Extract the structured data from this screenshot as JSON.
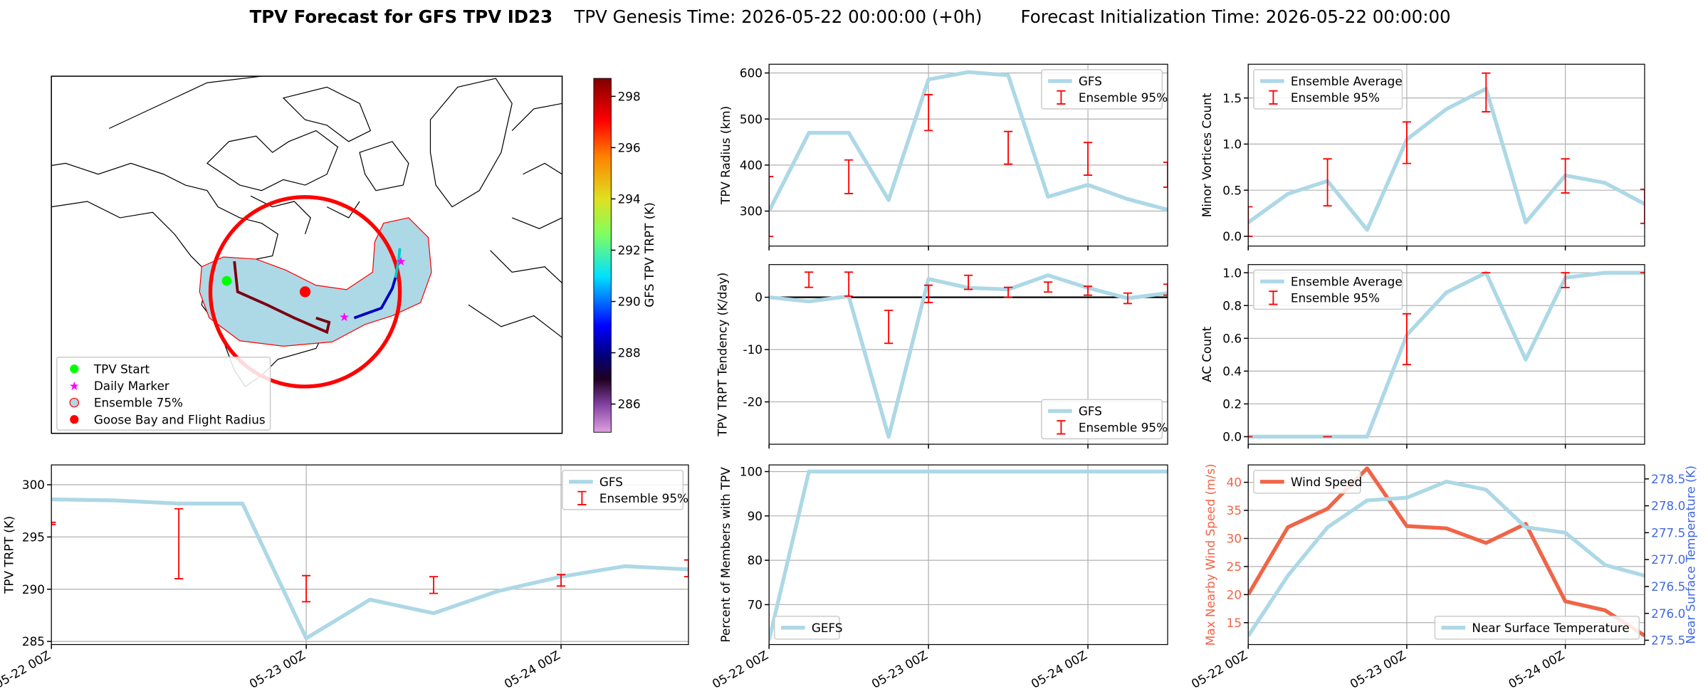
{
  "title": "TPV Forecast for GFS TPV ID23",
  "genesis": "TPV Genesis Time: 2026-05-22 00:00:00 (+0h)",
  "init": "Forecast Initialization Time: 2026-05-22 00:00:00",
  "chart_data": [
    {
      "type": "map",
      "markers": [
        {
          "name": "TPV Start",
          "color": "#00ff00"
        },
        {
          "name": "Daily Marker",
          "color": "#ff00ff"
        },
        {
          "name": "Ensemble 75%",
          "color": "#add8e6"
        },
        {
          "name": "Goose Bay and Flight Radius",
          "color": "#ff0000"
        }
      ],
      "colorbar": {
        "label": "GFS TPV TRPT (K)",
        "clim": [
          284.9,
          298.7
        ],
        "ticks": [
          286,
          288,
          290,
          292,
          294,
          296,
          298
        ]
      }
    },
    {
      "type": "line",
      "ylabel": "TPV Radius (km)",
      "x": [
        "05-22 00Z",
        "05-22 06Z",
        "05-22 12Z",
        "05-22 18Z",
        "05-23 00Z",
        "05-23 06Z",
        "05-23 12Z",
        "05-23 18Z",
        "05-24 00Z",
        "05-24 06Z",
        "05-24 12Z"
      ],
      "xticks": [
        "05-22 00Z",
        "05-23 00Z",
        "05-24 00Z"
      ],
      "xticklabels": false,
      "ylim": [
        224,
        619
      ],
      "yticks": [
        300,
        400,
        500,
        600
      ],
      "grid": true,
      "legend": "upper right",
      "series": [
        {
          "name": "GFS",
          "color": "#add8e6",
          "values": [
            300,
            470,
            470,
            324,
            586,
            602,
            595,
            331,
            357,
            326,
            303
          ]
        },
        {
          "name": "Ensemble 95%",
          "type": "errorbar",
          "color": "#ff0000",
          "low": [
            245,
            null,
            338,
            null,
            475,
            null,
            402,
            null,
            378,
            null,
            352
          ],
          "high": [
            375,
            null,
            411,
            null,
            553,
            null,
            473,
            null,
            449,
            null,
            406
          ]
        }
      ]
    },
    {
      "type": "line",
      "ylabel": "Minor Vortices Count",
      "x": [
        "05-22 00Z",
        "05-22 06Z",
        "05-22 12Z",
        "05-22 18Z",
        "05-23 00Z",
        "05-23 06Z",
        "05-23 12Z",
        "05-23 18Z",
        "05-24 00Z",
        "05-24 06Z",
        "05-24 12Z"
      ],
      "xticks": [
        "05-22 00Z",
        "05-23 00Z",
        "05-24 00Z"
      ],
      "xticklabels": false,
      "ylim": [
        -0.106,
        1.866
      ],
      "yticks": [
        {
          "value": 0,
          "label": "0.0"
        },
        0.5,
        {
          "value": 1,
          "label": "1.0"
        },
        1.5
      ],
      "grid": true,
      "legend": "upper left",
      "series": [
        {
          "name": "Ensemble Average",
          "color": "#add8e6",
          "values": [
            0.15,
            0.46,
            0.6,
            0.07,
            1.05,
            1.38,
            1.6,
            0.15,
            0.66,
            0.58,
            0.35
          ]
        },
        {
          "name": "Ensemble 95%",
          "type": "errorbar",
          "color": "#ff0000",
          "low": [
            0,
            null,
            0.33,
            null,
            0.79,
            null,
            1.35,
            null,
            0.47,
            null,
            0.14
          ],
          "high": [
            0.32,
            null,
            0.84,
            null,
            1.24,
            null,
            1.77,
            null,
            0.84,
            null,
            0.51
          ]
        }
      ]
    },
    {
      "type": "line",
      "ylabel": "TPV TRPT Tendency (K/day)",
      "x": [
        "05-22 00Z",
        "05-22 06Z",
        "05-22 12Z",
        "05-22 18Z",
        "05-23 00Z",
        "05-23 06Z",
        "05-23 12Z",
        "05-23 18Z",
        "05-24 00Z",
        "05-24 06Z",
        "05-24 12Z"
      ],
      "xticks": [
        "05-22 00Z",
        "05-23 00Z",
        "05-24 00Z"
      ],
      "xticklabels": false,
      "ylim": [
        -28.1,
        6.25
      ],
      "yticks": [
        -20,
        -10,
        0
      ],
      "grid": true,
      "hline": 0,
      "legend": "lower right",
      "series": [
        {
          "name": "GFS",
          "color": "#add8e6",
          "values": [
            0,
            -0.8,
            0.2,
            -26.7,
            3.5,
            1.8,
            1.5,
            4.2,
            1.8,
            -0.2,
            0.8
          ]
        },
        {
          "name": "Ensemble 95%",
          "type": "errorbar",
          "color": "#ff0000",
          "low": [
            null,
            1.9,
            0.2,
            -8.8,
            -1.0,
            1.5,
            0,
            1.0,
            0.4,
            -1.2,
            0.4
          ],
          "high": [
            null,
            4.8,
            4.8,
            -2.5,
            2.3,
            4.2,
            1.9,
            2.9,
            2.1,
            0.8,
            2.5
          ]
        }
      ]
    },
    {
      "type": "line",
      "ylabel": "AC Count",
      "x": [
        "05-22 00Z",
        "05-22 06Z",
        "05-22 12Z",
        "05-22 18Z",
        "05-23 00Z",
        "05-23 06Z",
        "05-23 12Z",
        "05-23 18Z",
        "05-24 00Z",
        "05-24 06Z",
        "05-24 12Z"
      ],
      "xticks": [
        "05-22 00Z",
        "05-23 00Z",
        "05-24 00Z"
      ],
      "xticklabels": false,
      "ylim": [
        -0.046,
        1.05
      ],
      "yticks": [
        {
          "value": 0,
          "label": "0.0"
        },
        0.2,
        0.4,
        0.6,
        0.8,
        {
          "value": 1,
          "label": "1.0"
        }
      ],
      "grid": true,
      "legend": "upper left",
      "series": [
        {
          "name": "Ensemble Average",
          "color": "#add8e6",
          "values": [
            0,
            0,
            0,
            0,
            0.62,
            0.88,
            1.0,
            0.47,
            0.97,
            1.0,
            1.0
          ]
        },
        {
          "name": "Ensemble 95%",
          "type": "errorbar",
          "color": "#ff0000",
          "low": [
            0,
            null,
            0,
            null,
            0.44,
            null,
            1.0,
            null,
            0.91,
            null,
            1.0
          ],
          "high": [
            0,
            null,
            0,
            null,
            0.75,
            null,
            1.0,
            null,
            1.0,
            null,
            1.0
          ]
        }
      ]
    },
    {
      "type": "line",
      "ylabel": "TPV TRPT (K)",
      "x": [
        "05-22 00Z",
        "05-22 06Z",
        "05-22 12Z",
        "05-22 18Z",
        "05-23 00Z",
        "05-23 06Z",
        "05-23 12Z",
        "05-23 18Z",
        "05-24 00Z",
        "05-24 06Z",
        "05-24 12Z"
      ],
      "xticks": [
        "05-22 00Z",
        "05-23 00Z",
        "05-24 00Z"
      ],
      "ylim": [
        284.7,
        301.9
      ],
      "yticks": [
        285,
        290,
        295,
        300
      ],
      "grid": true,
      "legend": "upper right",
      "series": [
        {
          "name": "GFS",
          "color": "#add8e6",
          "values": [
            298.6,
            298.5,
            298.2,
            298.2,
            285.3,
            289.0,
            287.7,
            289.8,
            291.2,
            292.2,
            291.9
          ]
        },
        {
          "name": "Ensemble 95%",
          "type": "errorbar",
          "color": "#ff0000",
          "low": [
            296.2,
            null,
            291.0,
            null,
            288.8,
            null,
            289.6,
            null,
            290.3,
            null,
            291.2
          ],
          "high": [
            296.4,
            null,
            297.7,
            null,
            291.3,
            null,
            291.2,
            null,
            291.4,
            null,
            292.8
          ]
        }
      ]
    },
    {
      "type": "line",
      "ylabel": "Percent of Members with TPV",
      "x": [
        "05-22 00Z",
        "05-22 06Z",
        "05-22 12Z",
        "05-22 18Z",
        "05-23 00Z",
        "05-23 06Z",
        "05-23 12Z",
        "05-23 18Z",
        "05-24 00Z",
        "05-24 06Z",
        "05-24 12Z"
      ],
      "xticks": [
        "05-22 00Z",
        "05-23 00Z",
        "05-24 00Z"
      ],
      "ylim": [
        61,
        101.5
      ],
      "yticks": [
        70,
        80,
        90,
        100
      ],
      "grid": true,
      "legend": "lower left",
      "series": [
        {
          "name": "GEFS",
          "color": "#add8e6",
          "values": [
            62,
            100,
            100,
            100,
            100,
            100,
            100,
            100,
            100,
            100,
            100
          ]
        }
      ]
    },
    {
      "type": "line",
      "ylabel": "Max Nearby Wind Speed (m/s)",
      "y2label": "Near Surface Temperature (K)",
      "ycolor": "#f06448",
      "y2color": "#4169e1",
      "x": [
        "05-22 00Z",
        "05-22 06Z",
        "05-22 12Z",
        "05-22 18Z",
        "05-23 00Z",
        "05-23 06Z",
        "05-23 12Z",
        "05-23 18Z",
        "05-24 00Z",
        "05-24 06Z",
        "05-24 12Z"
      ],
      "xticks": [
        "05-22 00Z",
        "05-23 00Z",
        "05-24 00Z"
      ],
      "ylim": [
        11.1,
        43.1
      ],
      "yticks": [
        15,
        20,
        25,
        30,
        35,
        40
      ],
      "y2lim": [
        275.42,
        278.76
      ],
      "y2ticks": [
        275.5,
        {
          "value": 276,
          "label": "276.0"
        },
        276.5,
        {
          "value": 277,
          "label": "277.0"
        },
        277.5,
        {
          "value": 278,
          "label": "278.0"
        },
        278.5
      ],
      "grid": true,
      "legend": "upper left",
      "series": [
        {
          "name": "Wind Speed",
          "color": "#f06448",
          "values": [
            20,
            32,
            35.3,
            42.5,
            32.2,
            31.8,
            29.2,
            32.6,
            18.8,
            17.2,
            12.7
          ]
        },
        {
          "name": "Near Surface Temperature",
          "color": "#add8e6",
          "axis": "y2",
          "legend": "lower right",
          "values": [
            275.58,
            276.7,
            277.6,
            278.1,
            278.15,
            278.45,
            278.3,
            277.6,
            277.5,
            276.9,
            276.7
          ]
        }
      ]
    }
  ]
}
